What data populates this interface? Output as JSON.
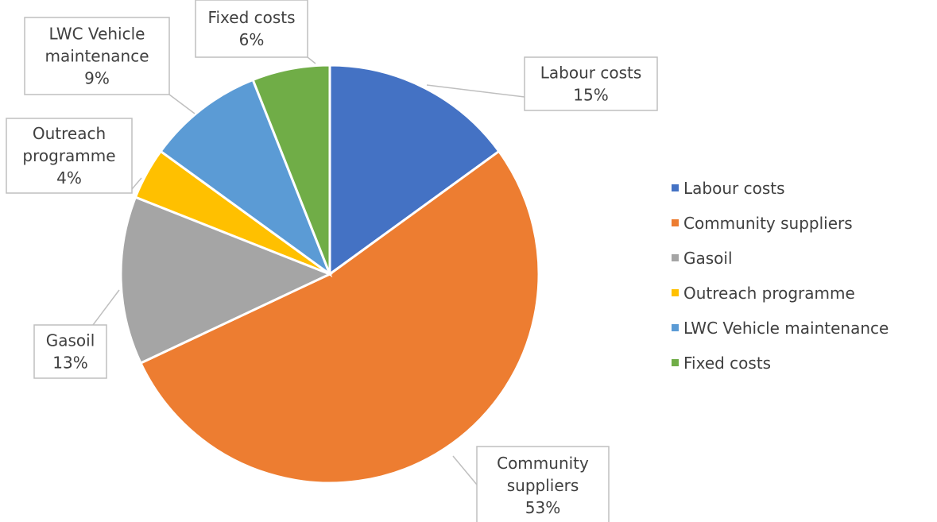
{
  "chart_data": {
    "type": "pie",
    "title": "",
    "categories": [
      "Labour costs",
      "Community suppliers",
      "Gasoil",
      "Outreach programme",
      "LWC Vehicle maintenance",
      "Fixed costs"
    ],
    "values": [
      15,
      53,
      13,
      4,
      9,
      6
    ],
    "labels": [
      [
        "Labour costs",
        "15%"
      ],
      [
        "Community",
        "suppliers",
        "53%"
      ],
      [
        "Gasoil",
        "13%"
      ],
      [
        "Outreach",
        "programme",
        "4%"
      ],
      [
        "LWC Vehicle",
        "maintenance",
        "9%"
      ],
      [
        "Fixed costs",
        "6%"
      ]
    ],
    "colors": [
      "#4472c4",
      "#ed7d31",
      "#a5a5a5",
      "#ffc000",
      "#5b9bd5",
      "#70ad47"
    ],
    "legend_position": "right"
  }
}
